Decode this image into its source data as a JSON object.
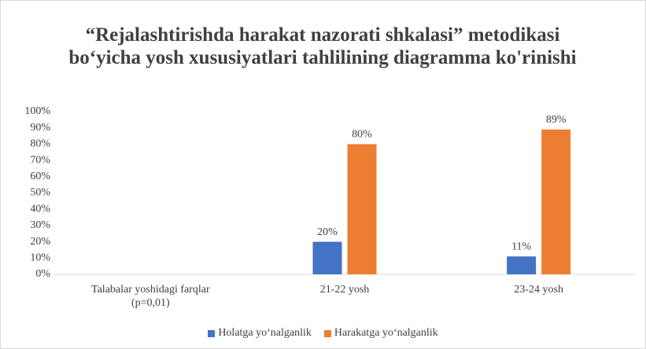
{
  "chart_data": {
    "type": "bar",
    "title": "“Rejalashtirishda harakat nazorati shkalasi” metodikasi bo‘yicha yosh xususiyatlari tahlilining diagramma ko'rinishi",
    "categories": [
      "Talabalar yoshidagi farqlar (p=0,01)",
      "21-22 yosh",
      "23-24 yosh"
    ],
    "series": [
      {
        "name": "Holatga yo‘nalganlik",
        "color": "#4472c4",
        "values": [
          null,
          20,
          11
        ],
        "value_labels": [
          null,
          "20%",
          "11%"
        ]
      },
      {
        "name": "Harakatga yo‘nalganlik",
        "color": "#ed7d31",
        "values": [
          null,
          80,
          89
        ],
        "value_labels": [
          null,
          "80%",
          "89%"
        ]
      }
    ],
    "ylim": [
      0,
      100
    ],
    "yticks": [
      {
        "value": 0,
        "label": "0%"
      },
      {
        "value": 10,
        "label": "10%"
      },
      {
        "value": 20,
        "label": "20%"
      },
      {
        "value": 30,
        "label": "30%"
      },
      {
        "value": 40,
        "label": "40%"
      },
      {
        "value": 50,
        "label": "50%"
      },
      {
        "value": 60,
        "label": "60%"
      },
      {
        "value": 70,
        "label": "70%"
      },
      {
        "value": 80,
        "label": "80%"
      },
      {
        "value": 90,
        "label": "90%"
      },
      {
        "value": 100,
        "label": "100%"
      }
    ],
    "grid": false,
    "legend": "bottom"
  }
}
